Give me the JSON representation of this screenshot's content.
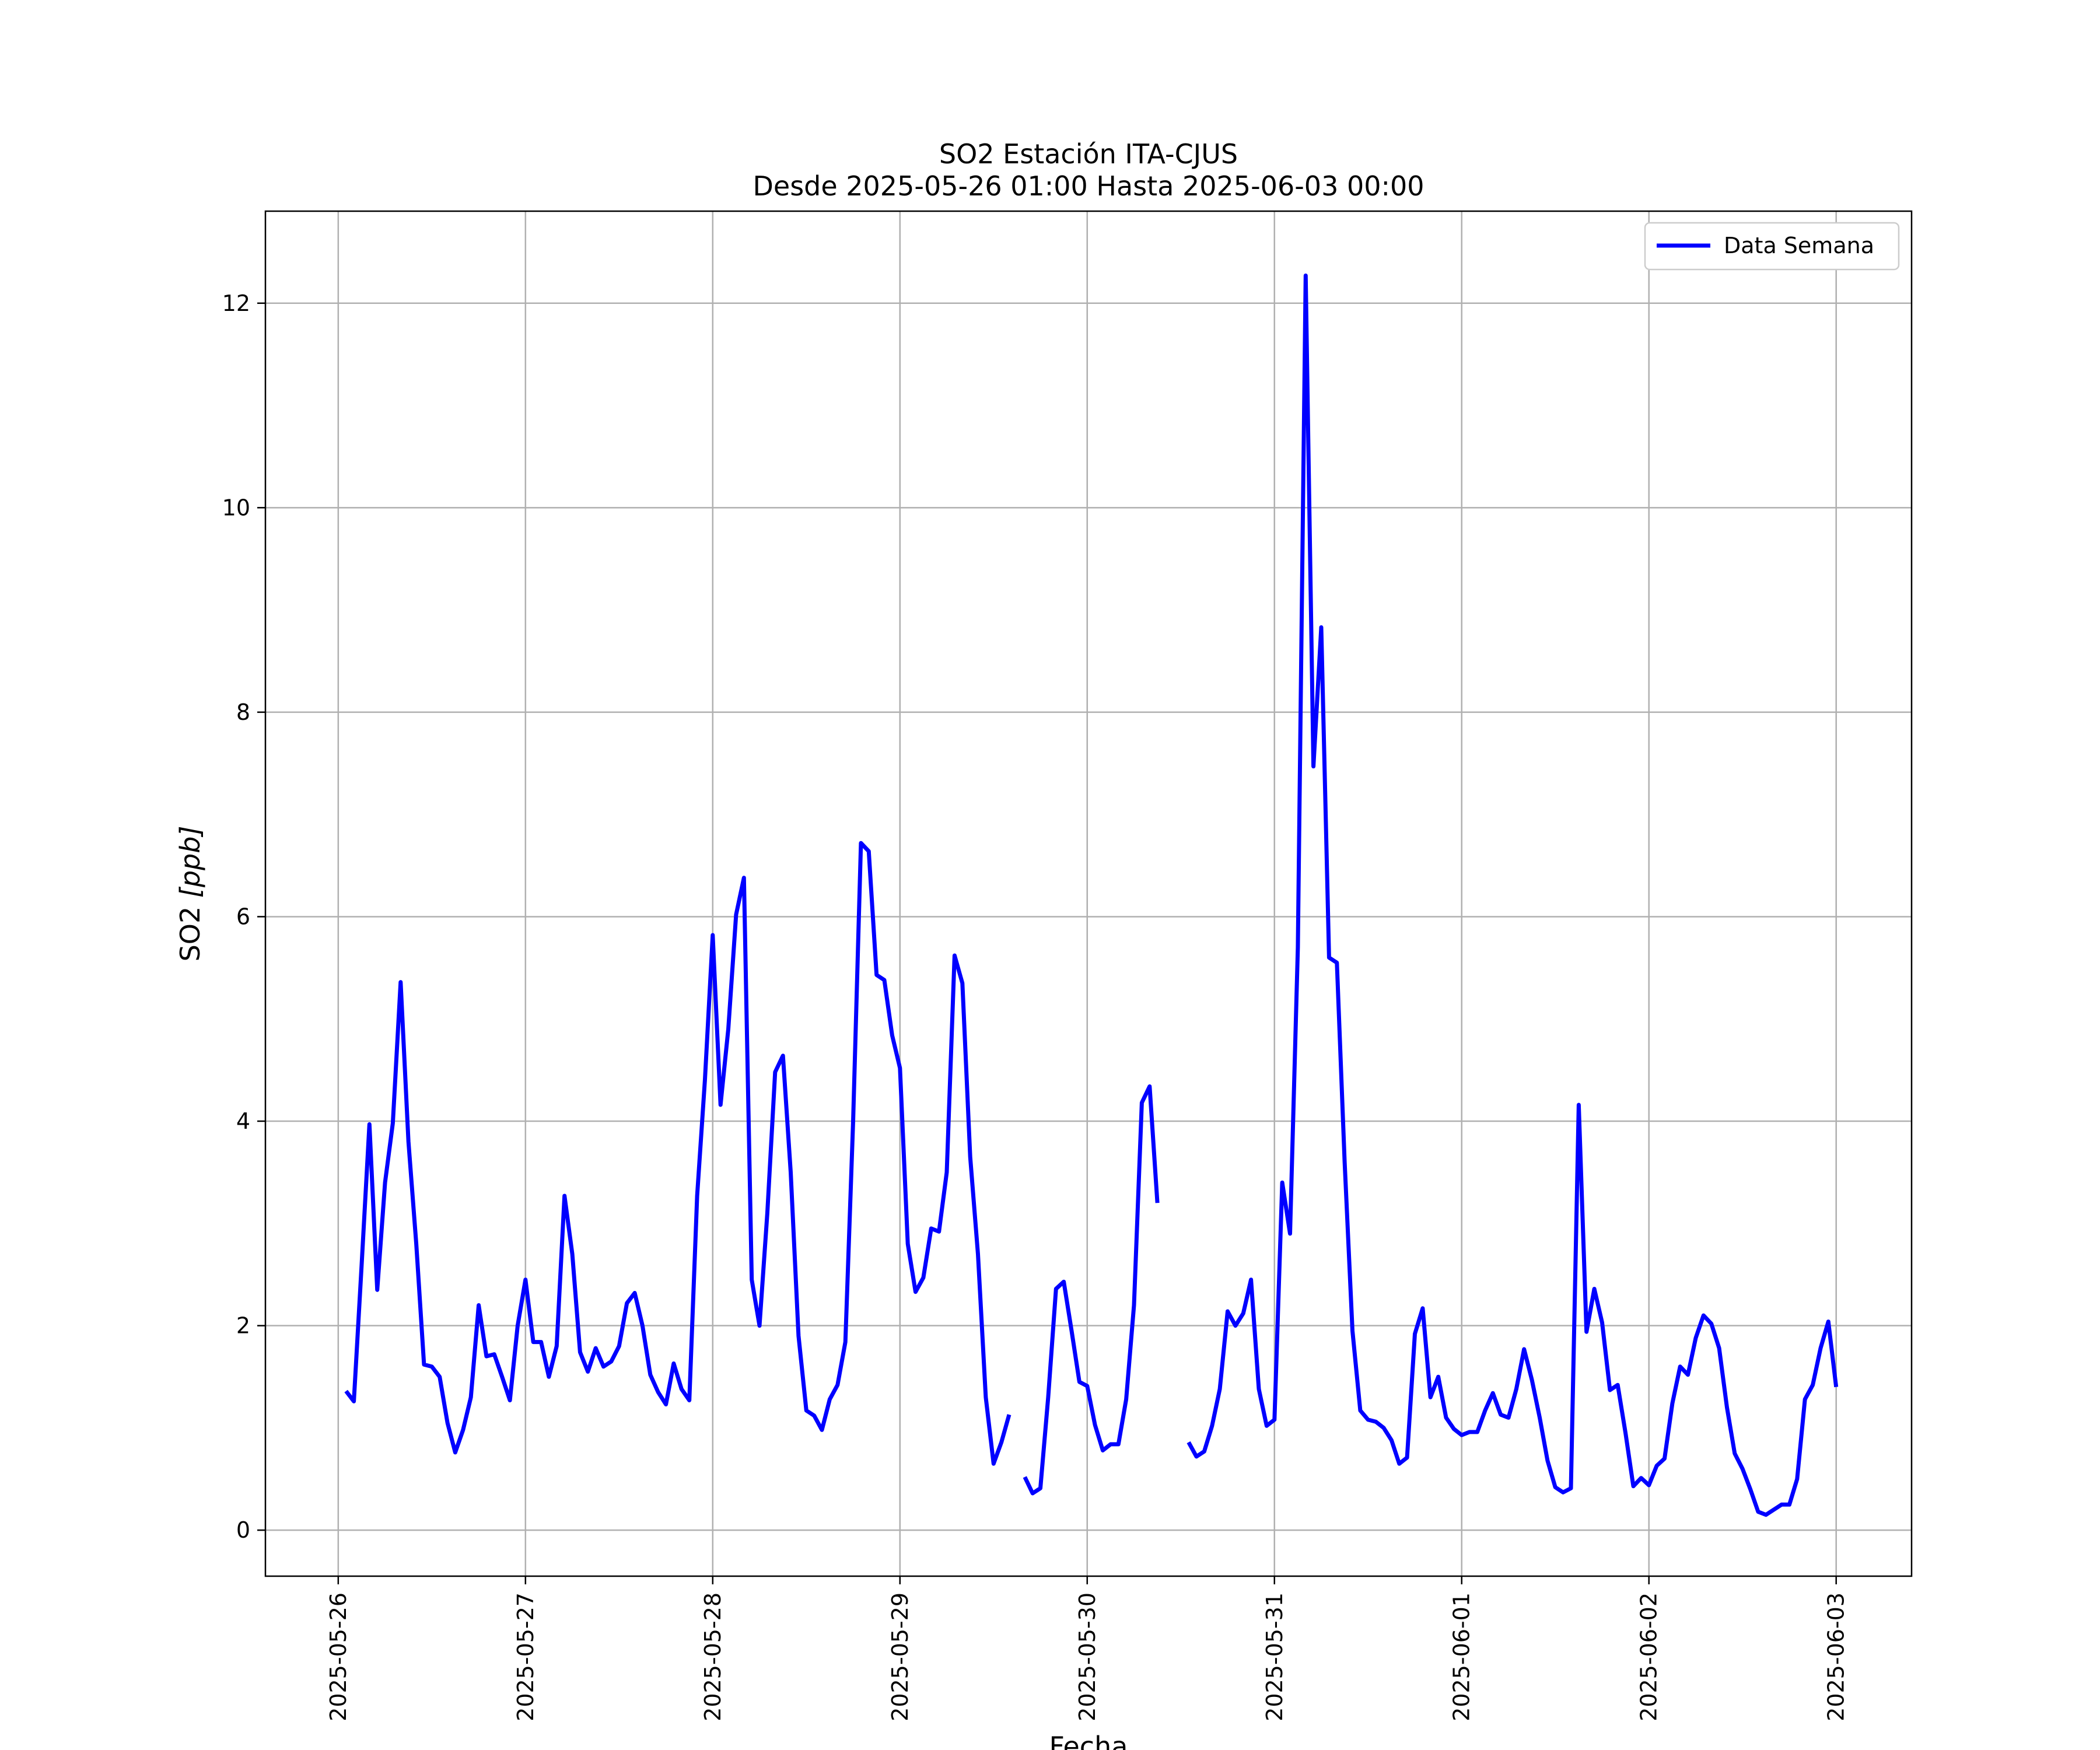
{
  "chart_data": {
    "type": "line",
    "title": "SO2 Estación ITA-CJUS",
    "subtitle": "Desde 2025-05-26 01:00 Hasta 2025-06-03 00:00",
    "xlabel": "Fecha",
    "ylabel_text": "SO2 ",
    "ylabel_unit": "[ppb]",
    "x_ticks": [
      "2025-05-26",
      "2025-05-27",
      "2025-05-28",
      "2025-05-29",
      "2025-05-30",
      "2025-05-31",
      "2025-06-01",
      "2025-06-02",
      "2025-06-03"
    ],
    "y_ticks": [
      0,
      2,
      4,
      6,
      8,
      10,
      12
    ],
    "xlim": [
      "2025-05-25 14:40",
      "2025-06-03 09:40"
    ],
    "ylim": [
      -0.45,
      12.9
    ],
    "grid": true,
    "legend_position": "top-right",
    "series": [
      {
        "name": "Data Semana",
        "color": "#0000ff",
        "points": [
          [
            "2025-05-26 01:00",
            1.36
          ],
          [
            "2025-05-26 02:00",
            1.26
          ],
          [
            "2025-05-26 03:00",
            2.6
          ],
          [
            "2025-05-26 04:00",
            3.97
          ],
          [
            "2025-05-26 05:00",
            2.35
          ],
          [
            "2025-05-26 06:00",
            3.4
          ],
          [
            "2025-05-26 07:00",
            3.98
          ],
          [
            "2025-05-26 08:00",
            5.36
          ],
          [
            "2025-05-26 09:00",
            3.8
          ],
          [
            "2025-05-26 10:00",
            2.8
          ],
          [
            "2025-05-26 11:00",
            1.62
          ],
          [
            "2025-05-26 12:00",
            1.6
          ],
          [
            "2025-05-26 13:00",
            1.5
          ],
          [
            "2025-05-26 14:00",
            1.05
          ],
          [
            "2025-05-26 15:00",
            0.76
          ],
          [
            "2025-05-26 16:00",
            0.98
          ],
          [
            "2025-05-26 17:00",
            1.3
          ],
          [
            "2025-05-26 18:00",
            2.2
          ],
          [
            "2025-05-26 19:00",
            1.7
          ],
          [
            "2025-05-26 20:00",
            1.72
          ],
          [
            "2025-05-26 21:00",
            1.5
          ],
          [
            "2025-05-26 22:00",
            1.27
          ],
          [
            "2025-05-26 23:00",
            2.0
          ],
          [
            "2025-05-27 00:00",
            2.45
          ],
          [
            "2025-05-27 01:00",
            1.84
          ],
          [
            "2025-05-27 02:00",
            1.84
          ],
          [
            "2025-05-27 03:00",
            1.5
          ],
          [
            "2025-05-27 04:00",
            1.8
          ],
          [
            "2025-05-27 05:00",
            3.27
          ],
          [
            "2025-05-27 06:00",
            2.7
          ],
          [
            "2025-05-27 07:00",
            1.74
          ],
          [
            "2025-05-27 08:00",
            1.55
          ],
          [
            "2025-05-27 09:00",
            1.78
          ],
          [
            "2025-05-27 10:00",
            1.6
          ],
          [
            "2025-05-27 11:00",
            1.65
          ],
          [
            "2025-05-27 12:00",
            1.8
          ],
          [
            "2025-05-27 13:00",
            2.22
          ],
          [
            "2025-05-27 14:00",
            2.32
          ],
          [
            "2025-05-27 15:00",
            2.0
          ],
          [
            "2025-05-27 16:00",
            1.52
          ],
          [
            "2025-05-27 17:00",
            1.35
          ],
          [
            "2025-05-27 18:00",
            1.23
          ],
          [
            "2025-05-27 19:00",
            1.63
          ],
          [
            "2025-05-27 20:00",
            1.38
          ],
          [
            "2025-05-27 21:00",
            1.27
          ],
          [
            "2025-05-27 22:00",
            3.27
          ],
          [
            "2025-05-27 23:00",
            4.4
          ],
          [
            "2025-05-28 00:00",
            5.82
          ],
          [
            "2025-05-28 01:00",
            4.16
          ],
          [
            "2025-05-28 02:00",
            4.9
          ],
          [
            "2025-05-28 03:00",
            6.02
          ],
          [
            "2025-05-28 04:00",
            6.38
          ],
          [
            "2025-05-28 05:00",
            2.45
          ],
          [
            "2025-05-28 06:00",
            2.0
          ],
          [
            "2025-05-28 07:00",
            3.1
          ],
          [
            "2025-05-28 08:00",
            4.48
          ],
          [
            "2025-05-28 09:00",
            4.64
          ],
          [
            "2025-05-28 10:00",
            3.5
          ],
          [
            "2025-05-28 11:00",
            1.9
          ],
          [
            "2025-05-28 12:00",
            1.17
          ],
          [
            "2025-05-28 13:00",
            1.12
          ],
          [
            "2025-05-28 14:00",
            0.98
          ],
          [
            "2025-05-28 15:00",
            1.28
          ],
          [
            "2025-05-28 16:00",
            1.42
          ],
          [
            "2025-05-28 17:00",
            1.84
          ],
          [
            "2025-05-28 18:00",
            4.0
          ],
          [
            "2025-05-28 19:00",
            6.72
          ],
          [
            "2025-05-28 20:00",
            6.64
          ],
          [
            "2025-05-28 21:00",
            5.43
          ],
          [
            "2025-05-28 22:00",
            5.38
          ],
          [
            "2025-05-28 23:00",
            4.84
          ],
          [
            "2025-05-29 00:00",
            4.52
          ],
          [
            "2025-05-29 01:00",
            2.8
          ],
          [
            "2025-05-29 02:00",
            2.33
          ],
          [
            "2025-05-29 03:00",
            2.47
          ],
          [
            "2025-05-29 04:00",
            2.95
          ],
          [
            "2025-05-29 05:00",
            2.92
          ],
          [
            "2025-05-29 06:00",
            3.5
          ],
          [
            "2025-05-29 07:00",
            5.62
          ],
          [
            "2025-05-29 08:00",
            5.35
          ],
          [
            "2025-05-29 09:00",
            3.65
          ],
          [
            "2025-05-29 10:00",
            2.7
          ],
          [
            "2025-05-29 11:00",
            1.3
          ],
          [
            "2025-05-29 12:00",
            0.65
          ],
          [
            "2025-05-29 13:00",
            0.86
          ],
          [
            "2025-05-29 14:00",
            1.13
          ],
          [
            "2025-05-29 15:00",
            null
          ],
          [
            "2025-05-29 16:00",
            0.52
          ],
          [
            "2025-05-29 17:00",
            0.36
          ],
          [
            "2025-05-29 18:00",
            0.41
          ],
          [
            "2025-05-29 19:00",
            1.3
          ],
          [
            "2025-05-29 20:00",
            2.36
          ],
          [
            "2025-05-29 21:00",
            2.43
          ],
          [
            "2025-05-29 22:00",
            1.95
          ],
          [
            "2025-05-29 23:00",
            1.45
          ],
          [
            "2025-05-30 00:00",
            1.41
          ],
          [
            "2025-05-30 01:00",
            1.03
          ],
          [
            "2025-05-30 02:00",
            0.78
          ],
          [
            "2025-05-30 03:00",
            0.84
          ],
          [
            "2025-05-30 04:00",
            0.84
          ],
          [
            "2025-05-30 05:00",
            1.28
          ],
          [
            "2025-05-30 06:00",
            2.2
          ],
          [
            "2025-05-30 07:00",
            4.18
          ],
          [
            "2025-05-30 08:00",
            4.34
          ],
          [
            "2025-05-30 09:00",
            3.2
          ],
          [
            "2025-05-30 10:00",
            null
          ],
          [
            "2025-05-30 13:00",
            0.86
          ],
          [
            "2025-05-30 14:00",
            0.72
          ],
          [
            "2025-05-30 15:00",
            0.77
          ],
          [
            "2025-05-30 16:00",
            1.02
          ],
          [
            "2025-05-30 17:00",
            1.38
          ],
          [
            "2025-05-30 18:00",
            2.14
          ],
          [
            "2025-05-30 19:00",
            2.0
          ],
          [
            "2025-05-30 20:00",
            2.12
          ],
          [
            "2025-05-30 21:00",
            2.45
          ],
          [
            "2025-05-30 22:00",
            1.38
          ],
          [
            "2025-05-30 23:00",
            1.02
          ],
          [
            "2025-05-31 00:00",
            1.08
          ],
          [
            "2025-05-31 01:00",
            3.4
          ],
          [
            "2025-05-31 02:00",
            2.9
          ],
          [
            "2025-05-31 03:00",
            5.7
          ],
          [
            "2025-05-31 04:00",
            12.27
          ],
          [
            "2025-05-31 05:00",
            7.47
          ],
          [
            "2025-05-31 06:00",
            8.83
          ],
          [
            "2025-05-31 07:00",
            5.6
          ],
          [
            "2025-05-31 08:00",
            5.55
          ],
          [
            "2025-05-31 09:00",
            3.6
          ],
          [
            "2025-05-31 10:00",
            1.95
          ],
          [
            "2025-05-31 11:00",
            1.17
          ],
          [
            "2025-05-31 12:00",
            1.08
          ],
          [
            "2025-05-31 13:00",
            1.06
          ],
          [
            "2025-05-31 14:00",
            1.0
          ],
          [
            "2025-05-31 15:00",
            0.88
          ],
          [
            "2025-05-31 16:00",
            0.65
          ],
          [
            "2025-05-31 17:00",
            0.71
          ],
          [
            "2025-05-31 18:00",
            1.92
          ],
          [
            "2025-05-31 19:00",
            2.17
          ],
          [
            "2025-05-31 20:00",
            1.3
          ],
          [
            "2025-05-31 21:00",
            1.5
          ],
          [
            "2025-05-31 22:00",
            1.1
          ],
          [
            "2025-05-31 23:00",
            0.99
          ],
          [
            "2025-06-01 00:00",
            0.93
          ],
          [
            "2025-06-01 01:00",
            0.96
          ],
          [
            "2025-06-01 02:00",
            0.96
          ],
          [
            "2025-06-01 03:00",
            1.17
          ],
          [
            "2025-06-01 04:00",
            1.34
          ],
          [
            "2025-06-01 05:00",
            1.13
          ],
          [
            "2025-06-01 06:00",
            1.1
          ],
          [
            "2025-06-01 07:00",
            1.38
          ],
          [
            "2025-06-01 08:00",
            1.77
          ],
          [
            "2025-06-01 09:00",
            1.47
          ],
          [
            "2025-06-01 10:00",
            1.1
          ],
          [
            "2025-06-01 11:00",
            0.68
          ],
          [
            "2025-06-01 12:00",
            0.42
          ],
          [
            "2025-06-01 13:00",
            0.37
          ],
          [
            "2025-06-01 14:00",
            0.41
          ],
          [
            "2025-06-01 15:00",
            4.16
          ],
          [
            "2025-06-01 16:00",
            1.94
          ],
          [
            "2025-06-01 17:00",
            2.36
          ],
          [
            "2025-06-01 18:00",
            2.03
          ],
          [
            "2025-06-01 19:00",
            1.37
          ],
          [
            "2025-06-01 20:00",
            1.42
          ],
          [
            "2025-06-01 21:00",
            0.95
          ],
          [
            "2025-06-01 22:00",
            0.43
          ],
          [
            "2025-06-01 23:00",
            0.51
          ],
          [
            "2025-06-02 00:00",
            0.44
          ],
          [
            "2025-06-02 01:00",
            0.63
          ],
          [
            "2025-06-02 02:00",
            0.7
          ],
          [
            "2025-06-02 03:00",
            1.24
          ],
          [
            "2025-06-02 04:00",
            1.6
          ],
          [
            "2025-06-02 05:00",
            1.52
          ],
          [
            "2025-06-02 06:00",
            1.88
          ],
          [
            "2025-06-02 07:00",
            2.1
          ],
          [
            "2025-06-02 08:00",
            2.02
          ],
          [
            "2025-06-02 09:00",
            1.78
          ],
          [
            "2025-06-02 10:00",
            1.2
          ],
          [
            "2025-06-02 11:00",
            0.75
          ],
          [
            "2025-06-02 12:00",
            0.6
          ],
          [
            "2025-06-02 13:00",
            0.4
          ],
          [
            "2025-06-02 14:00",
            0.18
          ],
          [
            "2025-06-02 15:00",
            0.15
          ],
          [
            "2025-06-02 16:00",
            0.2
          ],
          [
            "2025-06-02 17:00",
            0.25
          ],
          [
            "2025-06-02 18:00",
            0.25
          ],
          [
            "2025-06-02 19:00",
            0.5
          ],
          [
            "2025-06-02 20:00",
            1.28
          ],
          [
            "2025-06-02 21:00",
            1.42
          ],
          [
            "2025-06-02 22:00",
            1.78
          ],
          [
            "2025-06-02 23:00",
            2.04
          ],
          [
            "2025-06-03 00:00",
            1.4
          ]
        ]
      }
    ]
  }
}
